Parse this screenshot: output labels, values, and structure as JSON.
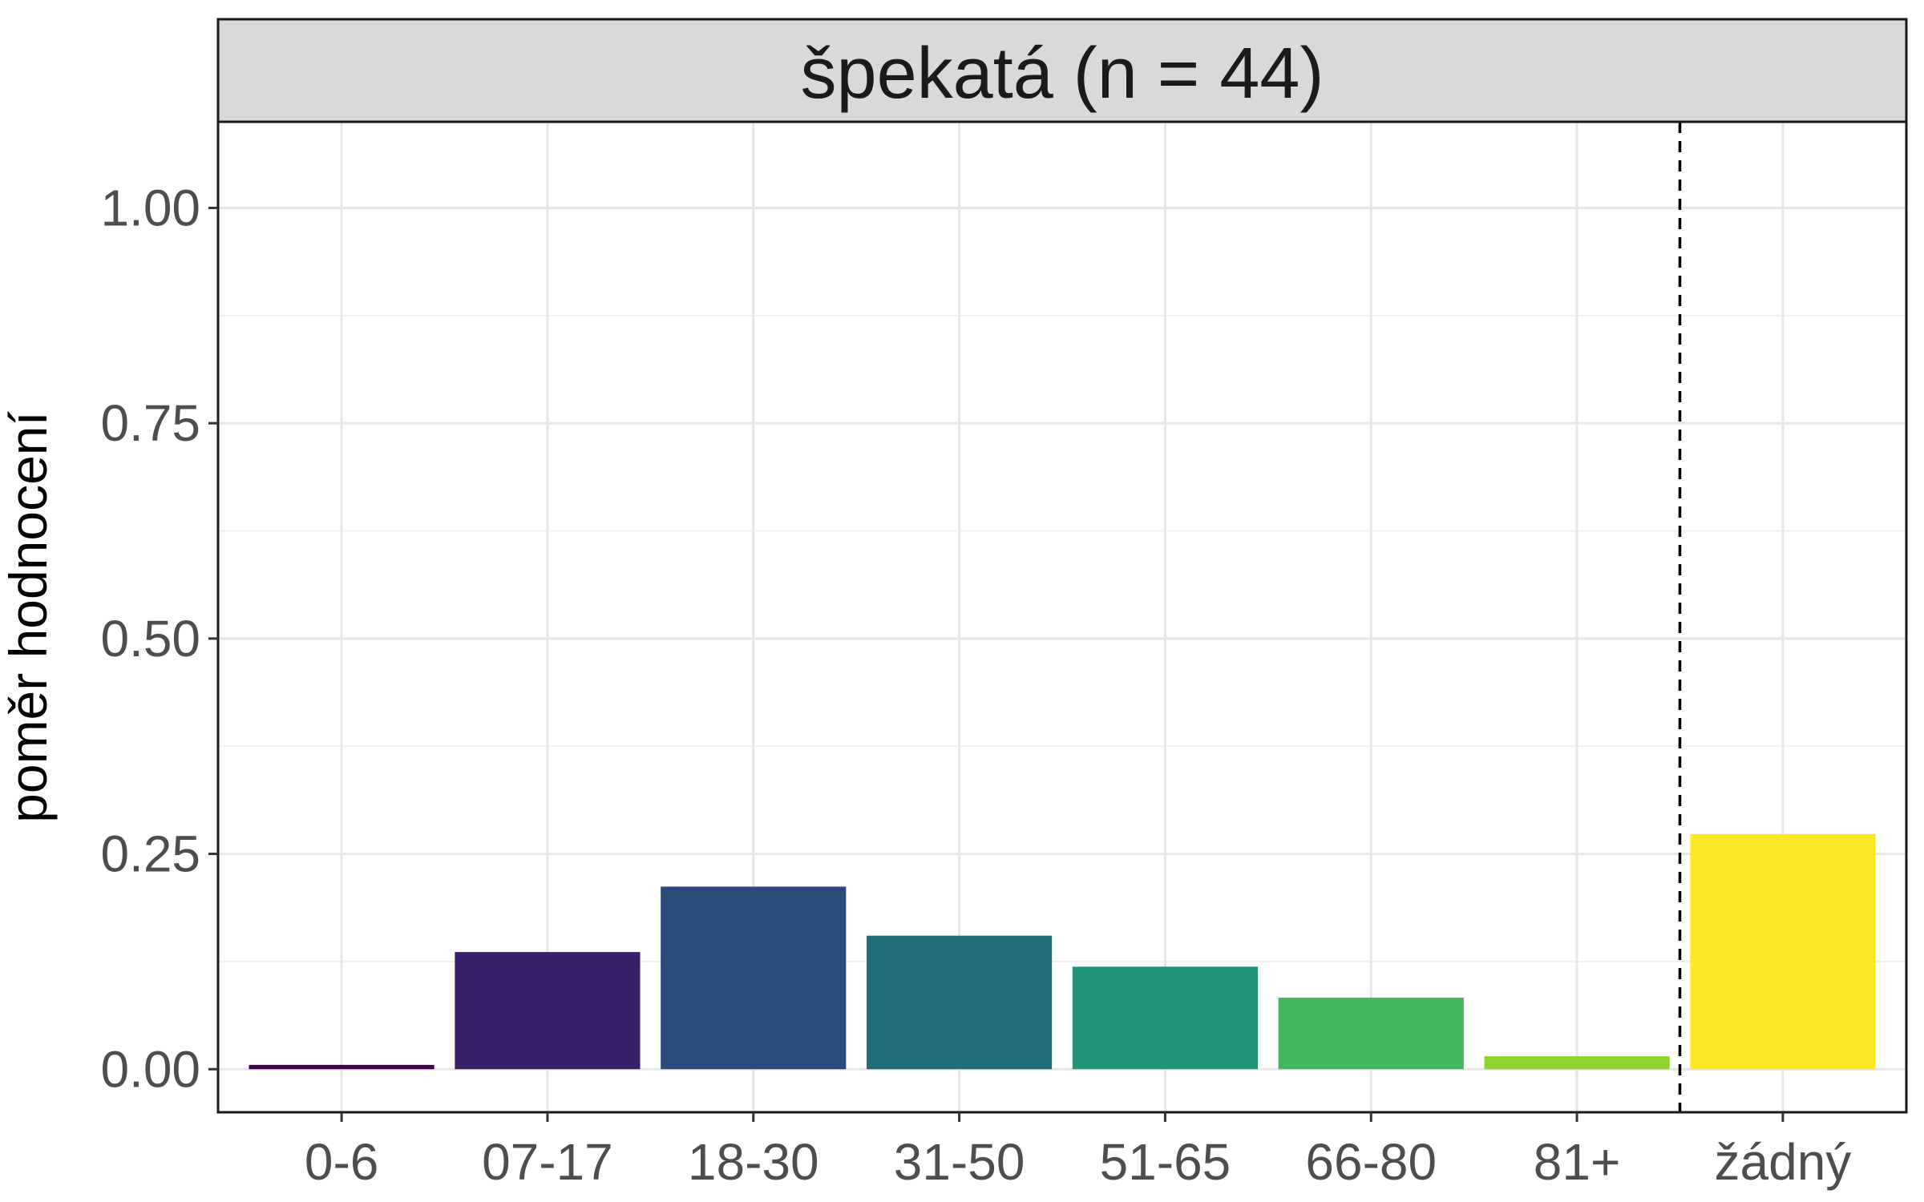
{
  "chart_data": {
    "type": "bar",
    "title": "špekatá (n = 44)",
    "xlabel": "",
    "ylabel": "poměr hodnocení",
    "categories": [
      "0-6",
      "07-17",
      "18-30",
      "31-50",
      "51-65",
      "66-80",
      "81+",
      "žádný"
    ],
    "values": [
      0.005,
      0.136,
      0.212,
      0.155,
      0.119,
      0.083,
      0.015,
      0.273
    ],
    "colors": [
      "#440154",
      "#3b1f69",
      "#2a4a7a",
      "#1f6e7a",
      "#21937a",
      "#42b85a",
      "#8fd42e",
      "#fde725"
    ],
    "ylim": [
      -0.05,
      1.1
    ],
    "yticks": [
      0.0,
      0.25,
      0.5,
      0.75,
      1.0
    ],
    "ytick_labels": [
      "0.00",
      "0.25",
      "0.50",
      "0.75",
      "1.00"
    ],
    "grid": true,
    "separator_line": {
      "style": "dashed",
      "between": [
        "81+",
        "žádný"
      ]
    }
  }
}
